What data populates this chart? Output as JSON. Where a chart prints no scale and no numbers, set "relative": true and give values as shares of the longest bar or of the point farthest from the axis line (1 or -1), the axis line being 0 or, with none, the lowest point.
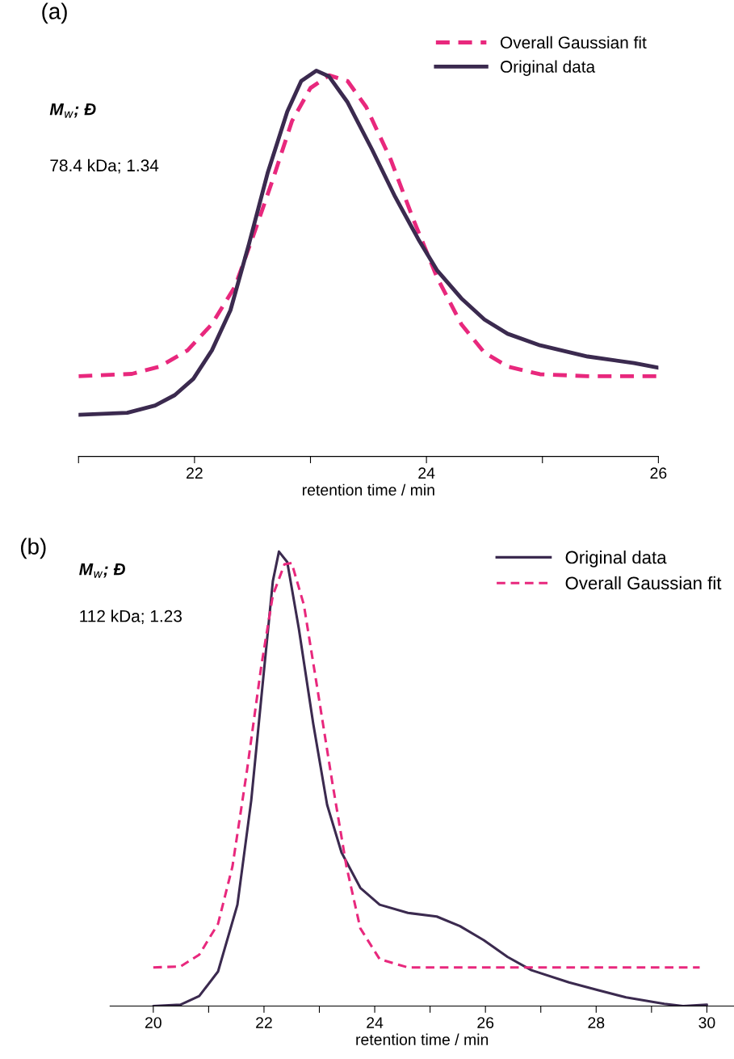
{
  "chart_data": [
    {
      "type": "line",
      "relative": true,
      "xlabel": "retention time / min",
      "xlim": [
        21,
        26
      ],
      "xticks": [
        {
          "value": 21,
          "label": null
        },
        22,
        {
          "value": 23,
          "label": null
        },
        24,
        {
          "value": 25,
          "label": null
        },
        26
      ],
      "tick_labels": "x",
      "grid": false,
      "legend": "top right",
      "marker": "none",
      "annotations": [
        "(a)",
        "M$_{w}$; Đ",
        "78.4 kDa; 1.34"
      ],
      "series": [
        {
          "name": "Overall Gaussian fit",
          "color": "#e8287d",
          "line_style": "dashed",
          "x": [
            21.0,
            21.46,
            21.7,
            21.94,
            22.15,
            22.35,
            22.51,
            22.68,
            22.84,
            23.0,
            23.16,
            23.32,
            23.48,
            23.69,
            23.89,
            24.09,
            24.3,
            24.5,
            24.7,
            24.98,
            25.39,
            26.0
          ],
          "values": [
            0.208,
            0.214,
            0.233,
            0.275,
            0.343,
            0.441,
            0.575,
            0.722,
            0.869,
            0.955,
            0.988,
            0.973,
            0.906,
            0.771,
            0.612,
            0.465,
            0.343,
            0.269,
            0.233,
            0.213,
            0.208,
            0.208
          ]
        },
        {
          "name": "Original data",
          "color": "#3b2a4f",
          "line_style": "solid",
          "x": [
            21.0,
            21.42,
            21.66,
            21.83,
            21.99,
            22.15,
            22.31,
            22.47,
            22.63,
            22.8,
            22.92,
            23.05,
            23.16,
            23.32,
            23.53,
            23.73,
            23.93,
            24.09,
            24.3,
            24.5,
            24.7,
            24.98,
            25.39,
            25.79,
            26.0
          ],
          "values": [
            0.108,
            0.113,
            0.132,
            0.159,
            0.201,
            0.275,
            0.379,
            0.551,
            0.734,
            0.894,
            0.973,
            1.0,
            0.985,
            0.918,
            0.796,
            0.673,
            0.563,
            0.483,
            0.41,
            0.355,
            0.318,
            0.288,
            0.259,
            0.242,
            0.23
          ]
        }
      ]
    },
    {
      "type": "line",
      "relative": true,
      "xlabel": "retention time / min",
      "xlim": [
        19.22,
        30.49
      ],
      "xticks": [
        20,
        {
          "value": 21,
          "label": null
        },
        22,
        {
          "value": 23,
          "label": null
        },
        24,
        {
          "value": 25,
          "label": null
        },
        26,
        {
          "value": 27,
          "label": null
        },
        28,
        {
          "value": 29,
          "label": null
        },
        30
      ],
      "tick_labels": "x",
      "grid": false,
      "legend": "top right",
      "marker": "none",
      "annotations": [
        "(b)",
        "M$_{w}$; Đ",
        "112 kDa; 1.23"
      ],
      "series": [
        {
          "name": "Original data",
          "color": "#3b2a4f",
          "line_style": "solid",
          "x": [
            20,
            20.49,
            20.83,
            21.17,
            21.52,
            21.77,
            21.99,
            22.16,
            22.27,
            22.42,
            22.63,
            22.89,
            23.14,
            23.4,
            23.74,
            24.09,
            24.6,
            25.12,
            25.54,
            25.97,
            26.4,
            26.83,
            27.51,
            28.03,
            28.54,
            29.23,
            29.57,
            30
          ],
          "values": [
            0,
            0.003,
            0.022,
            0.076,
            0.223,
            0.453,
            0.726,
            0.935,
            1.0,
            0.977,
            0.83,
            0.621,
            0.443,
            0.338,
            0.26,
            0.223,
            0.205,
            0.197,
            0.176,
            0.145,
            0.108,
            0.079,
            0.052,
            0.035,
            0.019,
            0.005,
            0,
            0.003
          ]
        },
        {
          "name": "Overall Gaussian fit",
          "color": "#e8287d",
          "line_style": "dashed",
          "x": [
            20,
            20.49,
            20.83,
            21.17,
            21.43,
            21.69,
            21.95,
            22.16,
            22.37,
            22.5,
            22.72,
            22.97,
            23.23,
            23.49,
            23.74,
            24.09,
            24.6,
            26.66,
            29.87
          ],
          "values": [
            0.085,
            0.087,
            0.113,
            0.181,
            0.307,
            0.516,
            0.747,
            0.904,
            0.972,
            0.975,
            0.883,
            0.694,
            0.495,
            0.307,
            0.171,
            0.103,
            0.085,
            0.085,
            0.085
          ]
        }
      ]
    }
  ]
}
